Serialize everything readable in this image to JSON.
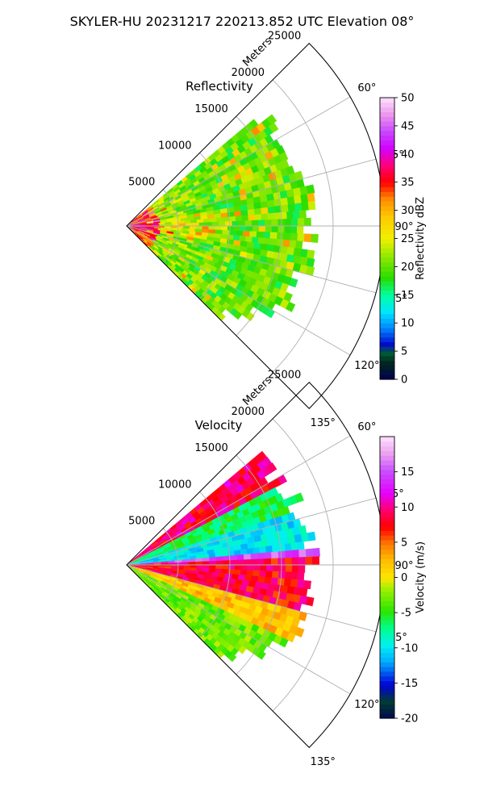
{
  "figure": {
    "suptitle": "SKYLER-HU  20231217  220213.852 UTC Elevation 08°"
  },
  "chart_data": [
    {
      "type": "heatmap",
      "projection": "polar-sector",
      "title": "Reflectivity",
      "radial_label": "Meters",
      "radial_ticks": [
        "5000",
        "10000",
        "15000",
        "20000",
        "25000"
      ],
      "r_max": 25000,
      "angle_ticks": [
        "60°",
        "75°",
        "90°",
        "105°",
        "120°",
        "135°"
      ],
      "angle_range_deg": [
        45,
        135
      ],
      "data_extent_m": 23000,
      "colorbar": {
        "label": "Reflectivity dBZ",
        "ticks": [
          "0",
          "5",
          "10",
          "15",
          "20",
          "25",
          "30",
          "35",
          "40",
          "45",
          "50"
        ],
        "range": [
          0,
          50
        ]
      },
      "field_description": "dominantly 18-28 dBZ returns (green/yellow) across the sector, stronger 30-38 dBZ near the radar along ~75°-105°"
    },
    {
      "type": "heatmap",
      "projection": "polar-sector",
      "title": "Velocity",
      "radial_label": "Meters",
      "radial_ticks": [
        "5000",
        "10000",
        "15000",
        "20000",
        "25000"
      ],
      "r_max": 25000,
      "angle_ticks": [
        "60°",
        "75°",
        "90°",
        "105°",
        "120°",
        "135°"
      ],
      "angle_range_deg": [
        45,
        135
      ],
      "data_extent_m": 23000,
      "colorbar": {
        "label": "Velocity (m/s)",
        "ticks": [
          "-20",
          "-15",
          "-10",
          "-5",
          "0",
          "5",
          "10",
          "15"
        ],
        "range": [
          -20,
          20
        ]
      },
      "field_description": "inbound (-5 to -12 m/s) on northern azimuths near 60°-85°, outbound 5-15 m/s along ~85°-105°, near zero on southern azimuths"
    }
  ],
  "colors": {
    "background": "#ffffff",
    "axis": "#000000",
    "grid": "#b0b0b0"
  }
}
